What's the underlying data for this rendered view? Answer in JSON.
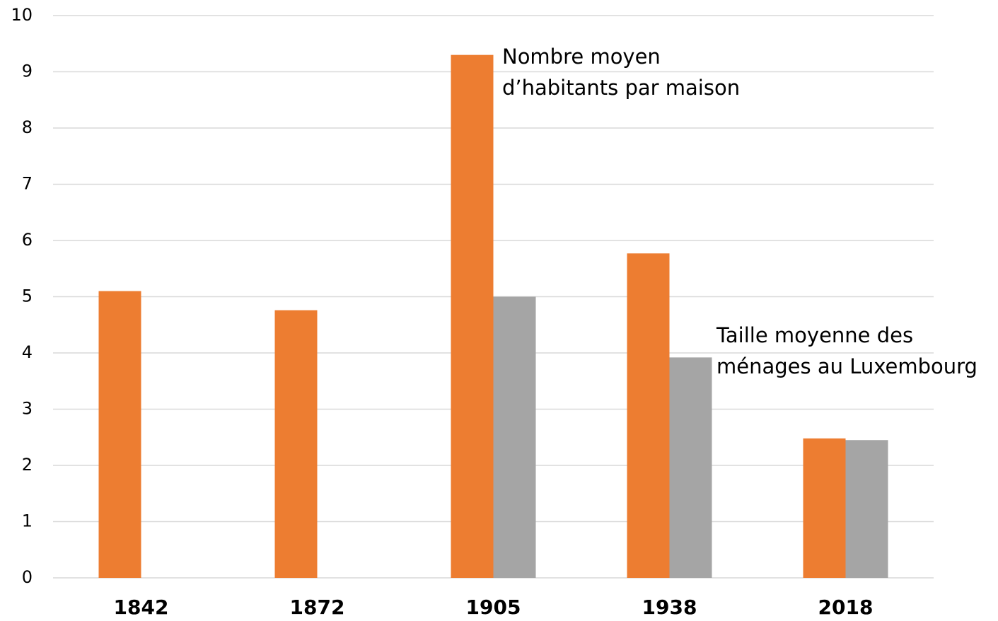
{
  "chart_data": {
    "type": "bar",
    "categories": [
      "1842",
      "1872",
      "1905",
      "1938",
      "2018"
    ],
    "series": [
      {
        "name": "Nombre moyen d’habitants par maison",
        "color": "#ED7D31",
        "values": [
          5.1,
          4.76,
          9.3,
          5.77,
          2.48
        ]
      },
      {
        "name": "Taille moyenne des ménages au Luxembourg",
        "color": "#A5A5A5",
        "values": [
          null,
          null,
          5.0,
          3.92,
          2.45
        ]
      }
    ],
    "ylim": [
      0,
      10
    ],
    "yticks": [
      0,
      1,
      2,
      3,
      4,
      5,
      6,
      7,
      8,
      9,
      10
    ],
    "grid": true
  }
}
